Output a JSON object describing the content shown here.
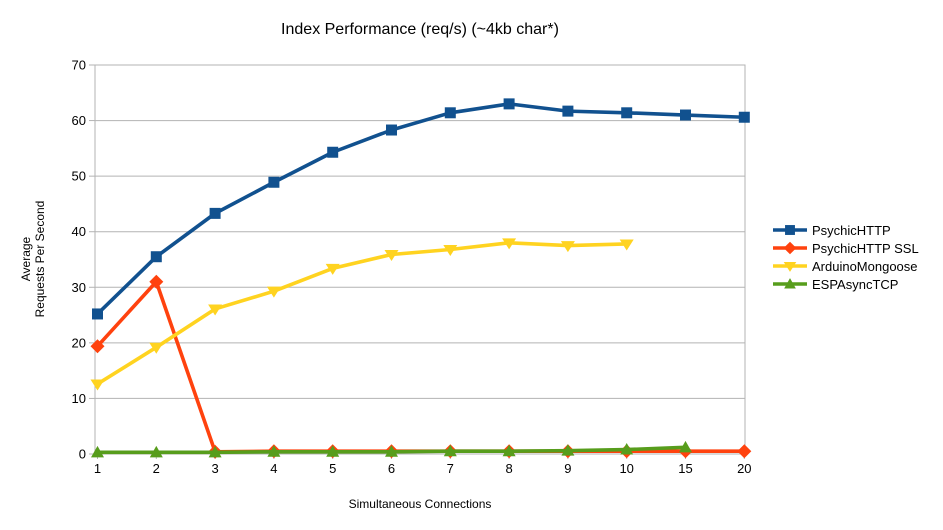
{
  "chart_data": {
    "type": "line",
    "title": "Index Performance (req/s) (~4kb char*)",
    "xlabel": "Simultaneous Connections",
    "ylabel": "Average Requests Per Second",
    "ylabel_lines": [
      "Average",
      "Requests Per Second"
    ],
    "categories": [
      "1",
      "2",
      "3",
      "4",
      "5",
      "6",
      "7",
      "8",
      "9",
      "10",
      "15",
      "20"
    ],
    "y_ticks": [
      0,
      10,
      20,
      30,
      40,
      50,
      60,
      70
    ],
    "ylim": [
      0,
      70
    ],
    "grid": true,
    "legend_position": "right",
    "series": [
      {
        "name": "PsychicHTTP",
        "marker": "square",
        "color": "#11518f",
        "values": [
          25.2,
          35.5,
          43.3,
          48.9,
          54.3,
          58.3,
          61.4,
          63.0,
          61.7,
          61.4,
          61.0,
          60.6
        ]
      },
      {
        "name": "PsychicHTTP SSL",
        "marker": "diamond",
        "color": "#ff420e",
        "values": [
          19.4,
          31.0,
          0.4,
          0.5,
          0.5,
          0.5,
          0.5,
          0.5,
          0.5,
          0.5,
          0.5,
          0.5
        ]
      },
      {
        "name": "ArduinoMongoose",
        "marker": "triangle-down",
        "color": "#ffd320",
        "values": [
          12.6,
          19.2,
          26.1,
          29.3,
          33.4,
          35.9,
          36.8,
          38.0,
          37.5,
          37.8
        ]
      },
      {
        "name": "ESPAsyncTCP",
        "marker": "triangle-up",
        "color": "#579d1c",
        "values": [
          0.3,
          0.3,
          0.3,
          0.4,
          0.4,
          0.4,
          0.5,
          0.5,
          0.6,
          0.8,
          1.2
        ]
      }
    ]
  },
  "colors": {
    "grid": "#b3b3b3",
    "text": "#000000",
    "background": "#ffffff"
  }
}
